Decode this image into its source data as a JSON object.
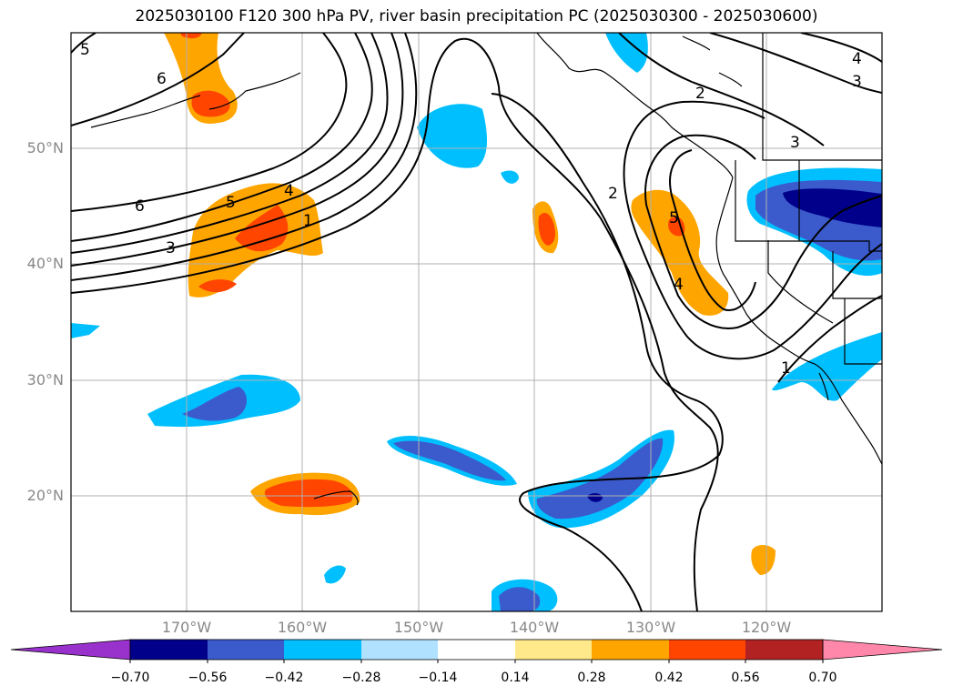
{
  "title": "2025030100 F120 300 hPa PV, river basin precipitation PC (2025030300 - 2025030600)",
  "latitude_labels": [
    "50°N",
    "40°N",
    "30°N",
    "20°N"
  ],
  "longitude_labels": [
    "170°W",
    "160°W",
    "150°W",
    "140°W",
    "130°W",
    "120°W"
  ],
  "contour_labels": [
    "5",
    "6",
    "6",
    "5",
    "4",
    "3",
    "1",
    "2",
    "2",
    "3",
    "3",
    "4",
    "5",
    "4",
    "1"
  ],
  "colorbar": {
    "tick_labels": [
      "−0.70",
      "−0.56",
      "−0.42",
      "−0.28",
      "−0.14",
      "0.14",
      "0.28",
      "0.42",
      "0.56",
      "0.70"
    ],
    "colors": [
      "#9932cc",
      "#00008b",
      "#3b5bcc",
      "#00bfff",
      "#b0e2ff",
      "#ffffff",
      "#ffe98a",
      "#ffa500",
      "#ff4500",
      "#b22222",
      "#ff88aa"
    ]
  },
  "colors": {
    "contour": "#000000",
    "coast": "#000000",
    "grid": "#b0b0b0"
  }
}
